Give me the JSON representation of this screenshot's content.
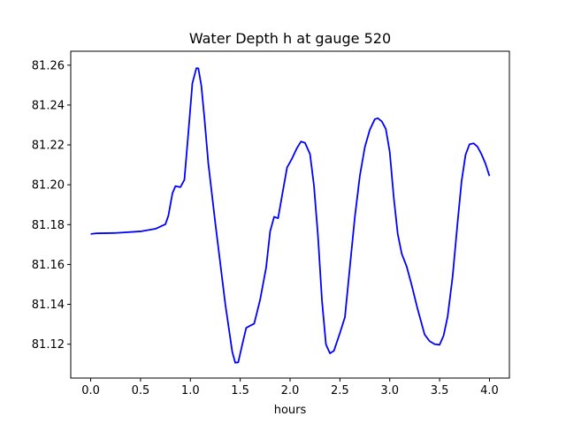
{
  "chart_data": {
    "type": "line",
    "title": "Water Depth h at gauge 520",
    "xlabel": "hours",
    "ylabel": "",
    "xlim": [
      -0.2,
      4.2
    ],
    "ylim": [
      81.103,
      81.267
    ],
    "xticks": [
      0.0,
      0.5,
      1.0,
      1.5,
      2.0,
      2.5,
      3.0,
      3.5,
      4.0
    ],
    "xtick_labels": [
      "0.0",
      "0.5",
      "1.0",
      "1.5",
      "2.0",
      "2.5",
      "3.0",
      "3.5",
      "4.0"
    ],
    "yticks": [
      81.12,
      81.14,
      81.16,
      81.18,
      81.2,
      81.22,
      81.24,
      81.26
    ],
    "ytick_labels": [
      "81.12",
      "81.14",
      "81.16",
      "81.18",
      "81.20",
      "81.22",
      "81.24",
      "81.26"
    ],
    "grid": false,
    "series": [
      {
        "color": "#0000ff",
        "x": [
          0.0,
          0.05,
          0.25,
          0.5,
          0.65,
          0.75,
          0.78,
          0.82,
          0.85,
          0.9,
          0.94,
          0.98,
          1.02,
          1.06,
          1.08,
          1.11,
          1.14,
          1.18,
          1.25,
          1.35,
          1.42,
          1.45,
          1.48,
          1.52,
          1.56,
          1.6,
          1.64,
          1.7,
          1.76,
          1.8,
          1.84,
          1.88,
          1.92,
          1.97,
          2.02,
          2.07,
          2.11,
          2.15,
          2.2,
          2.24,
          2.28,
          2.32,
          2.36,
          2.4,
          2.44,
          2.5,
          2.55,
          2.6,
          2.65,
          2.7,
          2.75,
          2.8,
          2.85,
          2.88,
          2.92,
          2.96,
          3.0,
          3.04,
          3.08,
          3.12,
          3.17,
          3.22,
          3.28,
          3.35,
          3.4,
          3.45,
          3.5,
          3.54,
          3.58,
          3.63,
          3.68,
          3.72,
          3.76,
          3.8,
          3.84,
          3.88,
          3.92,
          3.96,
          4.0
        ],
        "y": [
          81.1753,
          81.1756,
          81.1758,
          81.1766,
          81.1779,
          81.1802,
          81.1846,
          81.1957,
          81.1993,
          81.1988,
          81.2025,
          81.2263,
          81.2509,
          81.2585,
          81.2584,
          81.2497,
          81.234,
          81.2107,
          81.1808,
          81.1402,
          81.1162,
          81.1107,
          81.1109,
          81.1197,
          81.1282,
          81.1293,
          81.1303,
          81.1424,
          81.1585,
          81.1766,
          81.1839,
          81.1832,
          81.1947,
          81.2087,
          81.2132,
          81.2185,
          81.2217,
          81.221,
          81.2154,
          81.1994,
          81.1743,
          81.1419,
          81.1199,
          81.1154,
          81.1167,
          81.1256,
          81.1335,
          81.1588,
          81.1839,
          81.2045,
          81.2189,
          81.2276,
          81.2329,
          81.2334,
          81.2318,
          81.2281,
          81.2164,
          81.1936,
          81.1753,
          81.1654,
          81.1589,
          81.1496,
          81.1375,
          81.1248,
          81.1215,
          81.12,
          81.1197,
          81.1243,
          81.1337,
          81.1537,
          81.1809,
          81.2016,
          81.215,
          81.2203,
          81.2208,
          81.2191,
          81.2153,
          81.2106,
          81.2044
        ]
      }
    ]
  }
}
